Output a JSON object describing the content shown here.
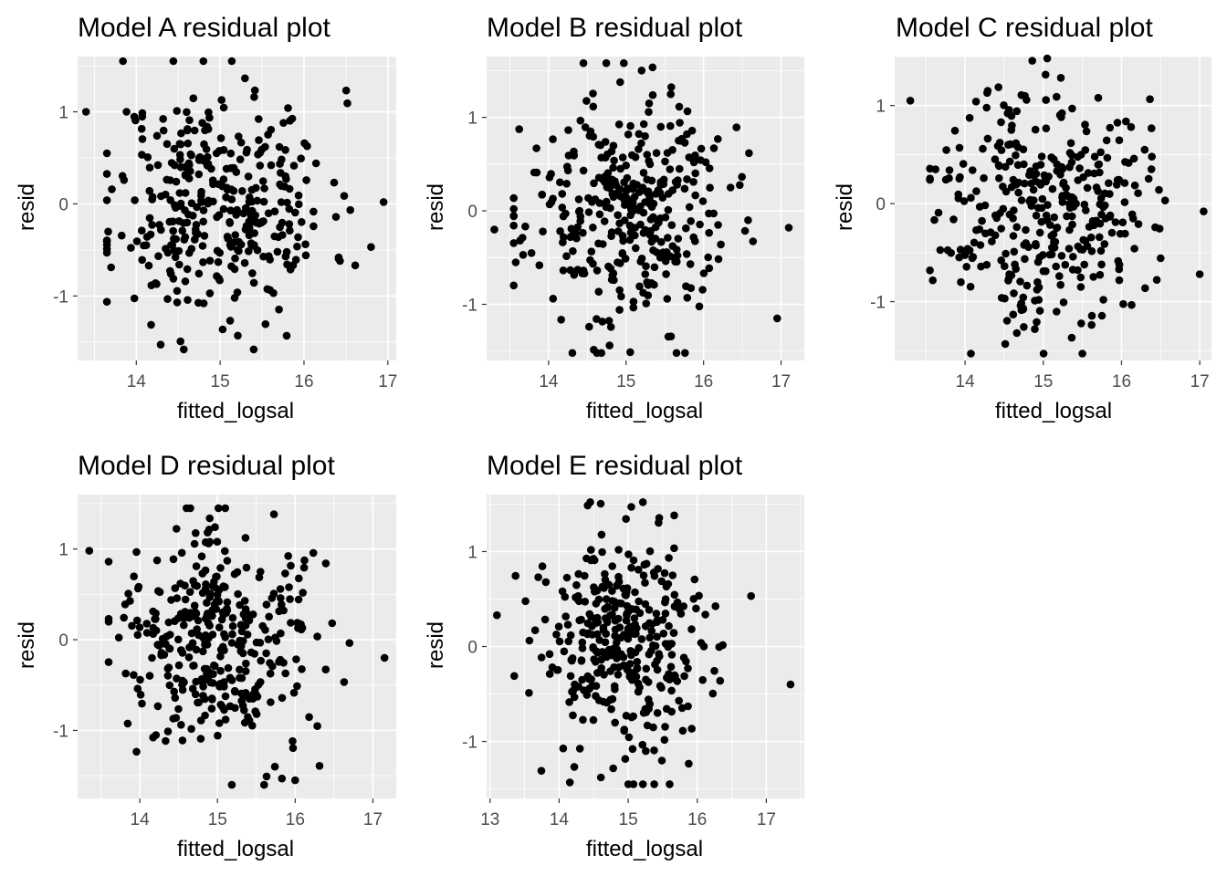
{
  "chart_data": [
    {
      "type": "scatter",
      "title": "Model A residual plot",
      "xlabel": "fitted_logsal",
      "ylabel": "resid",
      "xlim": [
        13.3,
        17.1
      ],
      "ylim": [
        -1.7,
        1.6
      ],
      "xticks": [
        14,
        15,
        16,
        17
      ],
      "yticks": [
        -1,
        0,
        1
      ],
      "grid": true,
      "n_points": 360,
      "seed": 11,
      "x_range": [
        13.4,
        17.0
      ],
      "y_range": [
        -1.58,
        1.55
      ],
      "x_center": 15.0,
      "x_sd": 0.65,
      "y_sd": 0.62,
      "extremes": [
        [
          13.4,
          1.0
        ],
        [
          14.8,
          1.55
        ],
        [
          15.4,
          -1.58
        ],
        [
          16.95,
          0.02
        ]
      ]
    },
    {
      "type": "scatter",
      "title": "Model B residual plot",
      "xlabel": "fitted_logsal",
      "ylabel": "resid",
      "xlim": [
        13.2,
        17.3
      ],
      "ylim": [
        -1.6,
        1.65
      ],
      "xticks": [
        14,
        15,
        16,
        17
      ],
      "yticks": [
        -1,
        0,
        1
      ],
      "grid": true,
      "n_points": 360,
      "seed": 23,
      "x_range": [
        13.3,
        17.1
      ],
      "y_range": [
        -1.52,
        1.58
      ],
      "x_center": 15.0,
      "x_sd": 0.65,
      "y_sd": 0.6,
      "extremes": [
        [
          13.3,
          -0.2
        ],
        [
          14.45,
          1.58
        ],
        [
          15.65,
          -1.52
        ],
        [
          16.95,
          -1.15
        ],
        [
          17.1,
          -0.18
        ]
      ]
    },
    {
      "type": "scatter",
      "title": "Model C residual plot",
      "xlabel": "fitted_logsal",
      "ylabel": "resid",
      "xlim": [
        13.1,
        17.15
      ],
      "ylim": [
        -1.6,
        1.5
      ],
      "xticks": [
        14,
        15,
        16,
        17
      ],
      "yticks": [
        -1,
        0,
        1
      ],
      "grid": true,
      "n_points": 360,
      "seed": 37,
      "x_range": [
        13.3,
        17.05
      ],
      "y_range": [
        -1.53,
        1.48
      ],
      "x_center": 15.0,
      "x_sd": 0.65,
      "y_sd": 0.6,
      "extremes": [
        [
          13.3,
          1.05
        ],
        [
          15.05,
          1.48
        ],
        [
          15.5,
          -1.53
        ],
        [
          17.0,
          -0.72
        ],
        [
          17.05,
          -0.08
        ]
      ]
    },
    {
      "type": "scatter",
      "title": "Model D residual plot",
      "xlabel": "fitted_logsal",
      "ylabel": "resid",
      "xlim": [
        13.2,
        17.3
      ],
      "ylim": [
        -1.75,
        1.6
      ],
      "xticks": [
        14,
        15,
        16,
        17
      ],
      "yticks": [
        -1,
        0,
        1
      ],
      "grid": true,
      "n_points": 360,
      "seed": 41,
      "x_range": [
        13.35,
        17.15
      ],
      "y_range": [
        -1.6,
        1.45
      ],
      "x_center": 15.0,
      "x_sd": 0.65,
      "y_sd": 0.6,
      "extremes": [
        [
          13.35,
          0.98
        ],
        [
          15.1,
          1.45
        ],
        [
          15.6,
          -1.6
        ],
        [
          16.0,
          -1.55
        ],
        [
          17.15,
          -0.2
        ]
      ]
    },
    {
      "type": "scatter",
      "title": "Model E residual plot",
      "xlabel": "fitted_logsal",
      "ylabel": "resid",
      "xlim": [
        12.95,
        17.55
      ],
      "ylim": [
        -1.6,
        1.6
      ],
      "xticks": [
        13,
        14,
        15,
        16,
        17
      ],
      "yticks": [
        -1,
        0,
        1
      ],
      "grid": true,
      "n_points": 360,
      "seed": 53,
      "x_range": [
        13.1,
        17.35
      ],
      "y_range": [
        -1.45,
        1.52
      ],
      "x_center": 15.0,
      "x_sd": 0.65,
      "y_sd": 0.6,
      "extremes": [
        [
          13.1,
          0.33
        ],
        [
          14.45,
          1.52
        ],
        [
          15.6,
          -1.45
        ],
        [
          17.35,
          -0.4
        ]
      ]
    }
  ]
}
